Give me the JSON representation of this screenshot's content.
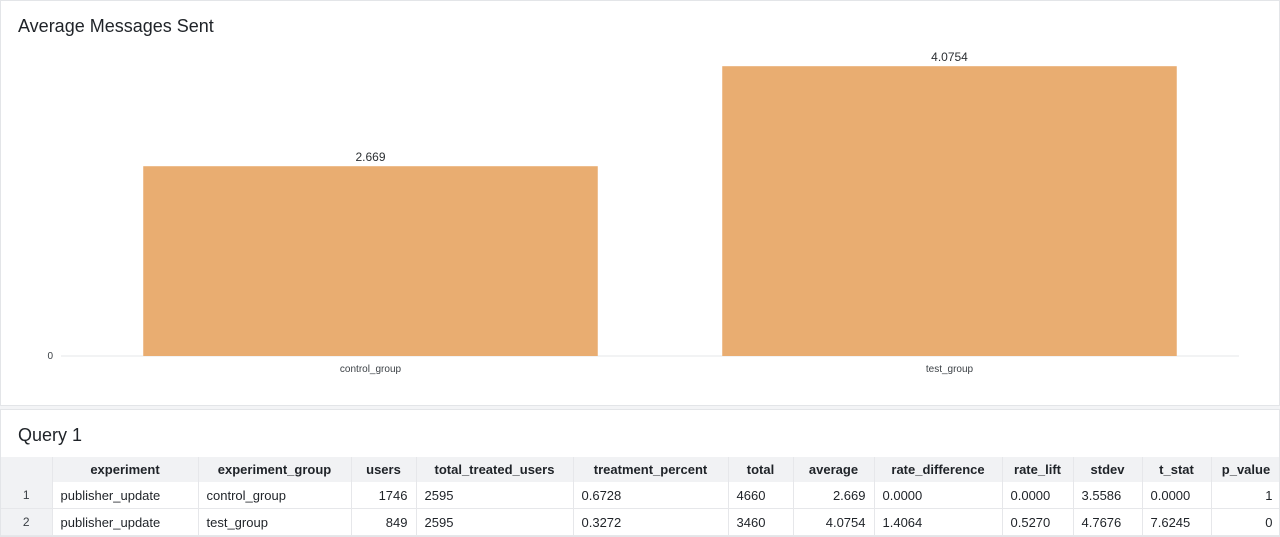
{
  "chart_panel": {
    "title": "Average Messages Sent"
  },
  "chart_data": {
    "type": "bar",
    "title": "Average Messages Sent",
    "categories": [
      "control_group",
      "test_group"
    ],
    "values": [
      2.669,
      4.0754
    ],
    "value_labels": [
      "2.669",
      "4.0754"
    ],
    "y_ticks": [
      "0"
    ],
    "ylim": [
      0,
      4.5
    ],
    "grid": false,
    "bar_color": "#e9ad71"
  },
  "table_panel": {
    "title": "Query 1",
    "columns": [
      "experiment",
      "experiment_group",
      "users",
      "total_treated_users",
      "treatment_percent",
      "total",
      "average",
      "rate_difference",
      "rate_lift",
      "stdev",
      "t_stat",
      "p_value"
    ],
    "rows": [
      {
        "num": "1",
        "cells": [
          "publisher_update",
          "control_group",
          "1746",
          "2595",
          "0.6728",
          "4660",
          "2.669",
          "0.0000",
          "0.0000",
          "3.5586",
          "0.0000",
          "1"
        ]
      },
      {
        "num": "2",
        "cells": [
          "publisher_update",
          "test_group",
          "849",
          "2595",
          "0.3272",
          "3460",
          "4.0754",
          "1.4064",
          "0.5270",
          "4.7676",
          "7.6245",
          "0"
        ]
      }
    ]
  }
}
